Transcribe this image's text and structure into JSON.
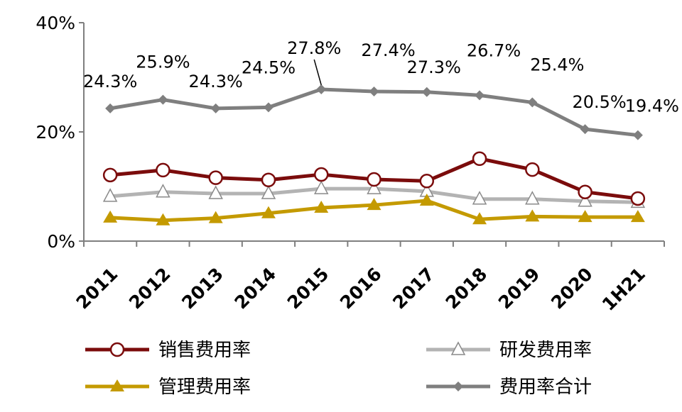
{
  "chart_data": {
    "type": "line",
    "title": "",
    "xlabel": "",
    "ylabel": "",
    "ylim": [
      0,
      40
    ],
    "yticks": [
      "0%",
      "20%",
      "40%"
    ],
    "ytick_values": [
      0,
      20,
      40
    ],
    "categories": [
      "2011",
      "2012",
      "2013",
      "2014",
      "2015",
      "2016",
      "2017",
      "2018",
      "2019",
      "2020",
      "1H21"
    ],
    "legend_position": "bottom",
    "grid": false,
    "series": [
      {
        "name": "销售费用率",
        "color": "#7b0c0c",
        "marker": "circle-open",
        "values": [
          12.1,
          13.0,
          11.6,
          11.2,
          12.2,
          11.3,
          11.0,
          15.1,
          13.1,
          9.0,
          7.8
        ]
      },
      {
        "name": "研发费用率",
        "color": "#b3b3b3",
        "marker": "triangle-open",
        "values": [
          8.2,
          9.0,
          8.7,
          8.7,
          9.6,
          9.6,
          9.1,
          7.7,
          7.7,
          7.3,
          7.1
        ]
      },
      {
        "name": "管理费用率",
        "color": "#c49a00",
        "marker": "triangle-filled",
        "values": [
          4.3,
          3.8,
          4.2,
          5.1,
          6.1,
          6.6,
          7.4,
          4.0,
          4.5,
          4.4,
          4.4
        ]
      },
      {
        "name": "费用率合计",
        "color": "#7f7f7f",
        "marker": "diamond-filled",
        "values": [
          24.3,
          25.9,
          24.3,
          24.5,
          27.8,
          27.4,
          27.3,
          26.7,
          25.4,
          20.5,
          19.4
        ],
        "data_labels": [
          "24.3%",
          "25.9%",
          "24.3%",
          "24.5%",
          "27.8%",
          "27.4%",
          "27.3%",
          "26.7%",
          "25.4%",
          "20.5%",
          "19.4%"
        ]
      }
    ]
  }
}
